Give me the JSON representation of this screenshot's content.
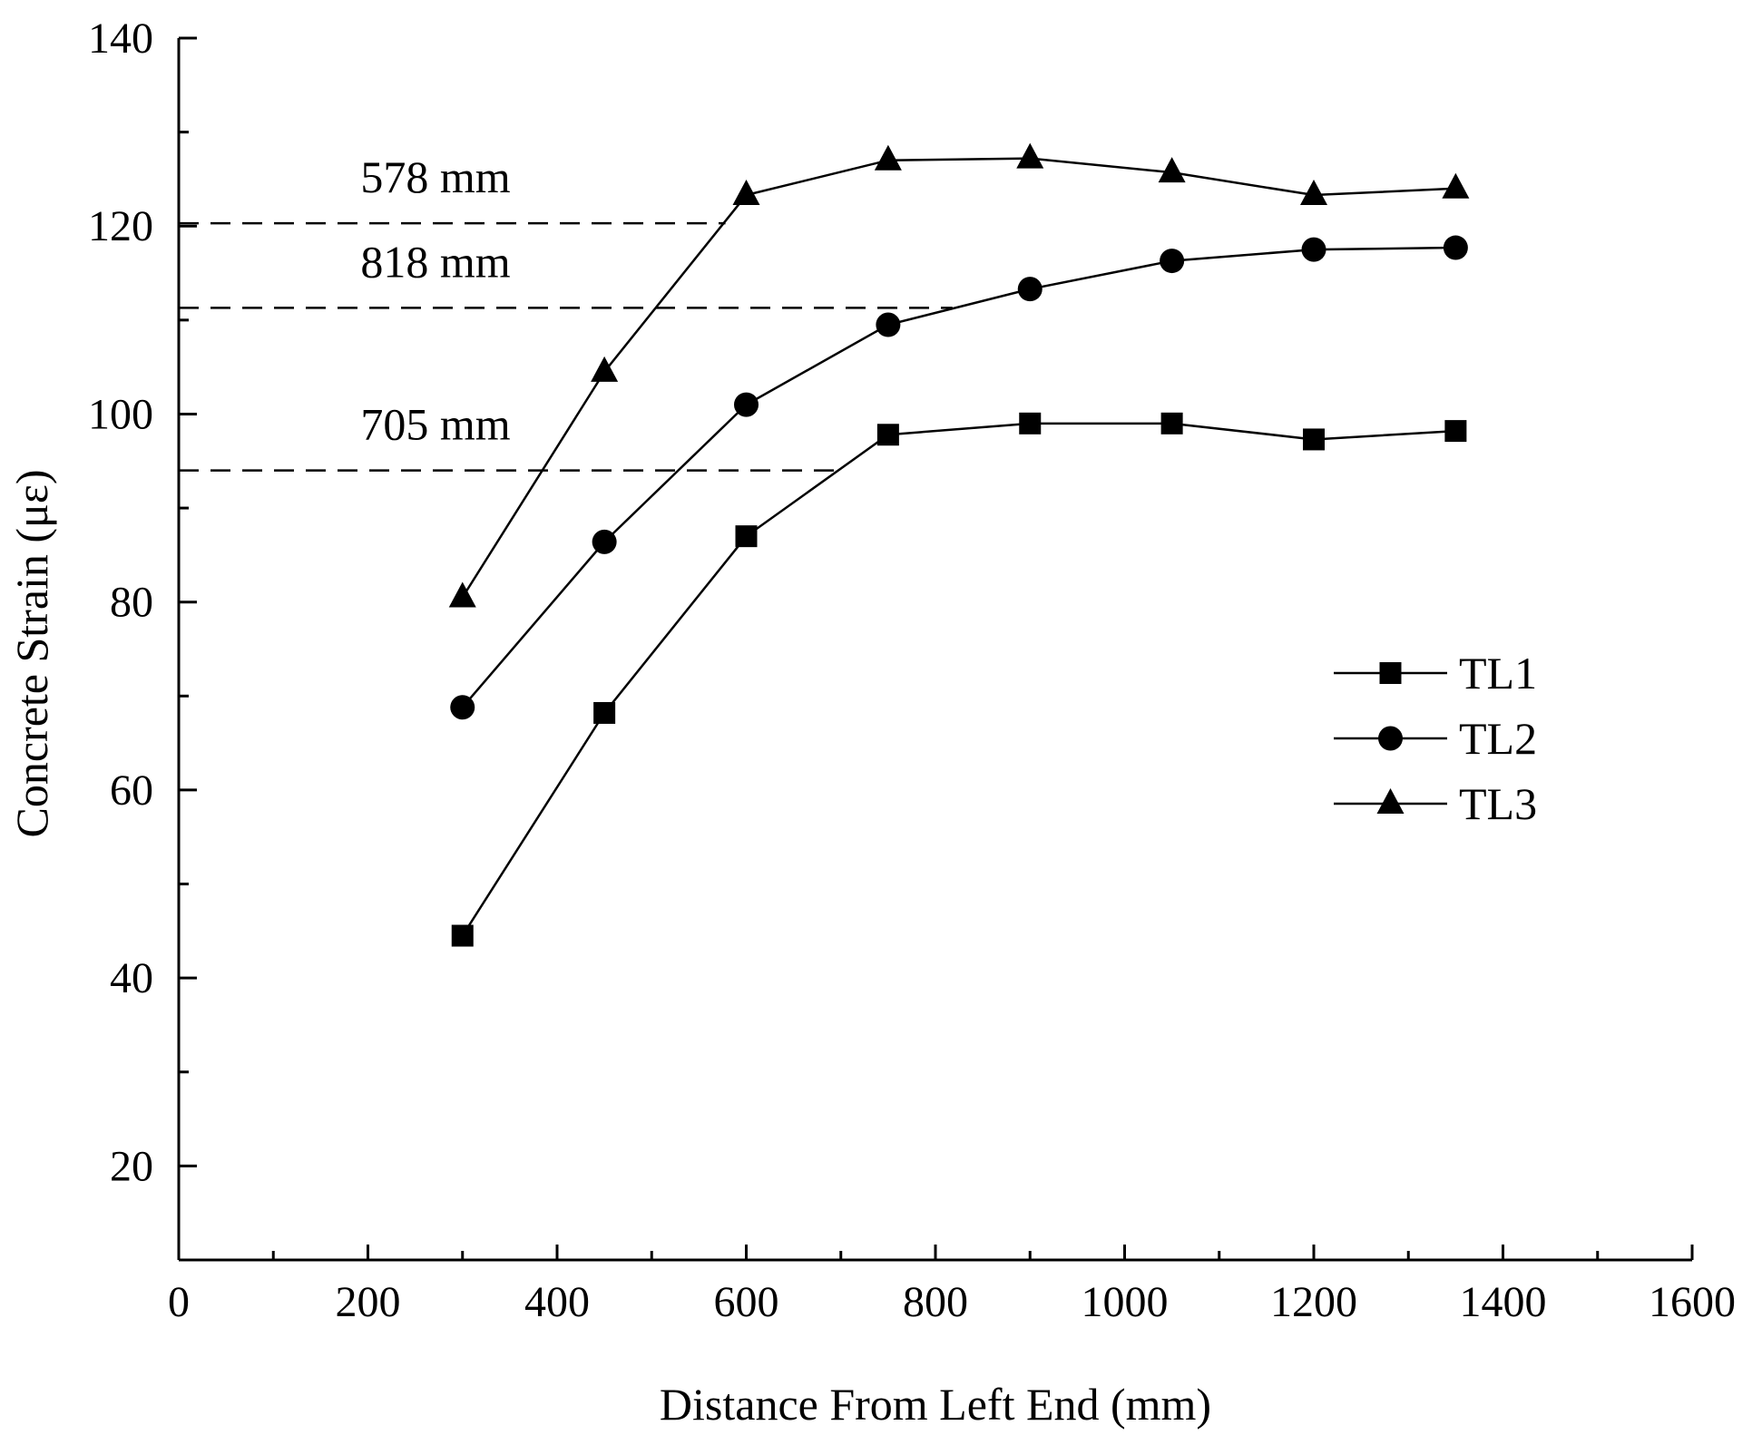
{
  "chart_data": {
    "type": "line",
    "title": "",
    "xlabel": "Distance From Left End (mm)",
    "ylabel": "Concrete Strain (με)",
    "xlim": [
      0,
      1600
    ],
    "ylim": [
      10,
      140
    ],
    "x_ticks": [
      0,
      200,
      400,
      600,
      800,
      1000,
      1200,
      1400,
      1600
    ],
    "y_ticks": [
      20,
      40,
      60,
      80,
      100,
      120,
      140
    ],
    "x": [
      300,
      450,
      600,
      750,
      900,
      1050,
      1200,
      1350
    ],
    "series": [
      {
        "name": "TL1",
        "marker": "square",
        "values": [
          44.5,
          68.2,
          87.0,
          97.8,
          99.0,
          99.0,
          97.3,
          98.2
        ]
      },
      {
        "name": "TL2",
        "marker": "circle",
        "values": [
          68.8,
          86.4,
          101.0,
          109.5,
          113.3,
          116.3,
          117.5,
          117.7
        ]
      },
      {
        "name": "TL3",
        "marker": "triangle",
        "values": [
          80.5,
          104.5,
          123.3,
          127.0,
          127.2,
          125.7,
          123.3,
          124.0
        ]
      }
    ],
    "reference_lines": [
      {
        "label": "578 mm",
        "y": 120.3,
        "x_end": 578
      },
      {
        "label": "818 mm",
        "y": 111.3,
        "x_end": 818
      },
      {
        "label": "705 mm",
        "y": 94.0,
        "x_end": 705
      }
    ],
    "legend_position": "center-right",
    "grid": false
  }
}
